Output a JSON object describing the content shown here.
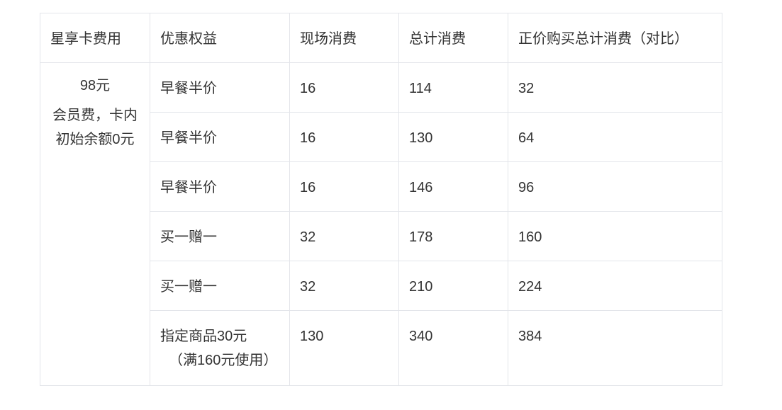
{
  "table": {
    "headers": [
      "星享卡费用",
      "优惠权益",
      "现场消费",
      "总计消费",
      "正价购买总计消费（对比）"
    ],
    "fee_cell": {
      "price": "98元",
      "description": "会员费，卡内初始余额0元"
    },
    "rows": [
      {
        "benefit": "早餐半价",
        "benefit_note": "",
        "onsite": "16",
        "total": "114",
        "full_price_total": "32"
      },
      {
        "benefit": "早餐半价",
        "benefit_note": "",
        "onsite": "16",
        "total": "130",
        "full_price_total": "64"
      },
      {
        "benefit": "早餐半价",
        "benefit_note": "",
        "onsite": "16",
        "total": "146",
        "full_price_total": "96"
      },
      {
        "benefit": "买一赠一",
        "benefit_note": "",
        "onsite": "32",
        "total": "178",
        "full_price_total": "160"
      },
      {
        "benefit": "买一赠一",
        "benefit_note": "",
        "onsite": "32",
        "total": "210",
        "full_price_total": "224"
      },
      {
        "benefit": "指定商品30元",
        "benefit_note": "（满160元使用）",
        "onsite": "130",
        "total": "340",
        "full_price_total": "384"
      }
    ]
  }
}
